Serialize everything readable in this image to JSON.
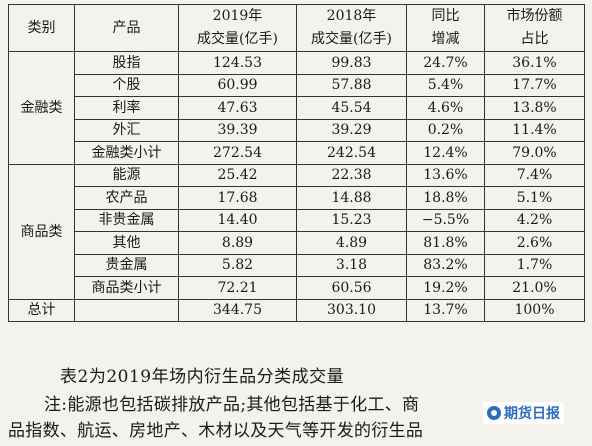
{
  "table": {
    "header": {
      "category": "类别",
      "product": "产品",
      "year2019_top": "2019年",
      "year2019_bottom": "成交量(亿手)",
      "year2018_top": "2018年",
      "year2018_bottom": "成交量(亿手)",
      "yoy_top": "同比",
      "yoy_bottom": "增减",
      "share_top": "市场份额",
      "share_bottom": "占比"
    },
    "groups": [
      {
        "category": "金融类",
        "rows": [
          {
            "product": "股指",
            "v2019": "124.53",
            "v2018": "99.83",
            "yoy": "24.7%",
            "share": "36.1%"
          },
          {
            "product": "个股",
            "v2019": "60.99",
            "v2018": "57.88",
            "yoy": "5.4%",
            "share": "17.7%"
          },
          {
            "product": "利率",
            "v2019": "47.63",
            "v2018": "45.54",
            "yoy": "4.6%",
            "share": "13.8%"
          },
          {
            "product": "外汇",
            "v2019": "39.39",
            "v2018": "39.29",
            "yoy": "0.2%",
            "share": "11.4%"
          },
          {
            "product": "金融类小计",
            "v2019": "272.54",
            "v2018": "242.54",
            "yoy": "12.4%",
            "share": "79.0%"
          }
        ]
      },
      {
        "category": "商品类",
        "rows": [
          {
            "product": "能源",
            "v2019": "25.42",
            "v2018": "22.38",
            "yoy": "13.6%",
            "share": "7.4%"
          },
          {
            "product": "农产品",
            "v2019": "17.68",
            "v2018": "14.88",
            "yoy": "18.8%",
            "share": "5.1%"
          },
          {
            "product": "非贵金属",
            "v2019": "14.40",
            "v2018": "15.23",
            "yoy": "−5.5%",
            "share": "4.2%"
          },
          {
            "product": "其他",
            "v2019": "8.89",
            "v2018": "4.89",
            "yoy": "81.8%",
            "share": "2.6%"
          },
          {
            "product": "贵金属",
            "v2019": "5.82",
            "v2018": "3.18",
            "yoy": "83.2%",
            "share": "1.7%"
          },
          {
            "product": "商品类小计",
            "v2019": "72.21",
            "v2018": "60.56",
            "yoy": "19.2%",
            "share": "21.0%"
          }
        ]
      }
    ],
    "total": {
      "label": "总计",
      "v2019": "344.75",
      "v2018": "303.10",
      "yoy": "13.7%",
      "share": "100%"
    }
  },
  "caption": "表2为2019年场内衍生品分类成交量",
  "note_line1": "注:能源也包括碳排放产品;其他包括基于化工、商",
  "note_line2": "品指数、航运、房地产、木材以及天气等开发的衍生品",
  "watermark": "期货日报"
}
